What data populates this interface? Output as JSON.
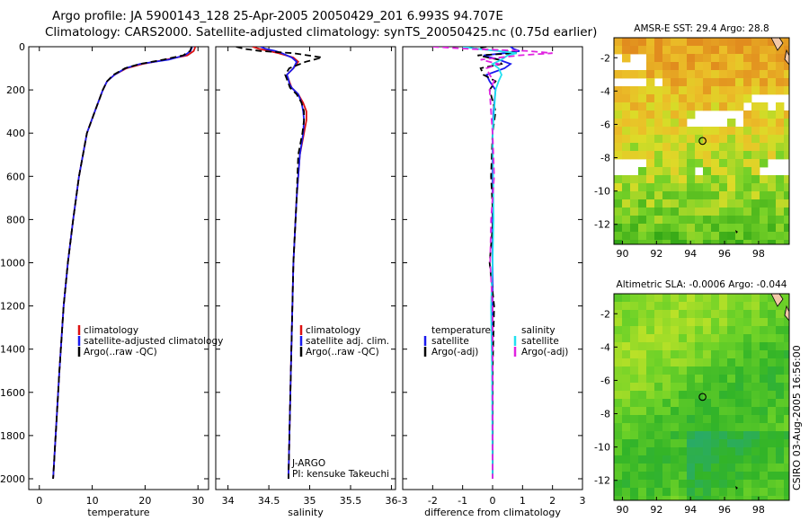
{
  "title_line1": "Argo profile: JA 5900143_128 25-Apr-2005 20050429_201 6.993S 94.707E",
  "title_line2": "Climatology: CARS2000. Satellite-adjusted climatology: synTS_20050425.nc (0.75d earlier)",
  "credit": "CSIRO 03-Aug-2005 16:56:00",
  "colors": {
    "red": "#dd1111",
    "blue": "#1a1aee",
    "black": "#000000",
    "cyan": "#22e0f0",
    "magenta": "#e022e0"
  },
  "chart_data": [
    {
      "id": "temperature",
      "type": "line",
      "xlabel": "temperature",
      "ylabel": "",
      "xlim": [
        -2,
        32
      ],
      "ylim": [
        2050,
        0
      ],
      "xticks": [
        0,
        10,
        20,
        30
      ],
      "xtick_labels": [
        "0",
        "10",
        "20",
        "30"
      ],
      "yticks": [
        0,
        200,
        400,
        600,
        800,
        1000,
        1200,
        1400,
        1600,
        1800,
        2000
      ],
      "ytick_labels": [
        "0",
        "200",
        "400",
        "600",
        "800",
        "1000",
        "1200",
        "1400",
        "1600",
        "1800",
        "2000"
      ],
      "legend": [
        "climatology",
        "satellite-adjusted climatology",
        "Argo(..raw -QC)"
      ],
      "depth": [
        0,
        20,
        40,
        60,
        80,
        100,
        130,
        160,
        200,
        300,
        400,
        600,
        800,
        1000,
        1200,
        1500,
        2000
      ],
      "series": [
        {
          "name": "climatology",
          "color": "red",
          "dashed": false,
          "values": [
            29.5,
            29.2,
            28.0,
            24.0,
            19.5,
            16.5,
            14.2,
            12.8,
            12.0,
            10.5,
            9.0,
            7.5,
            6.4,
            5.4,
            4.6,
            3.8,
            2.6
          ]
        },
        {
          "name": "satellite-adjusted climatology",
          "color": "blue",
          "dashed": false,
          "values": [
            28.9,
            28.6,
            27.5,
            24.5,
            19.0,
            16.3,
            14.2,
            12.8,
            12.0,
            10.5,
            9.0,
            7.5,
            6.4,
            5.4,
            4.6,
            3.8,
            2.6
          ]
        },
        {
          "name": "Argo(..raw -QC)",
          "color": "black",
          "dashed": true,
          "values": [
            28.8,
            28.5,
            27.2,
            23.5,
            19.0,
            16.2,
            14.0,
            12.8,
            12.0,
            10.5,
            9.0,
            7.5,
            6.4,
            5.4,
            4.6,
            3.8,
            2.6
          ]
        }
      ]
    },
    {
      "id": "salinity",
      "type": "line",
      "xlabel": "salinity",
      "xlim": [
        33.85,
        36.05
      ],
      "ylim": [
        2050,
        0
      ],
      "xticks": [
        34,
        34.5,
        35,
        35.5,
        36
      ],
      "xtick_labels": [
        "34",
        "34.5",
        "35",
        "35.5",
        "36"
      ],
      "legend": [
        "climatology",
        "satellite adj. clim.",
        "Argo(..raw -QC)"
      ],
      "annotation": [
        "J-ARGO",
        "PI: kensuke Takeuchi"
      ],
      "depth": [
        0,
        10,
        20,
        30,
        50,
        70,
        100,
        130,
        150,
        170,
        190,
        220,
        260,
        300,
        340,
        400,
        500,
        700,
        1000,
        1500,
        2000
      ],
      "series": [
        {
          "name": "climatology",
          "color": "red",
          "dashed": false,
          "values": [
            34.3,
            34.38,
            34.5,
            34.62,
            34.8,
            34.86,
            34.8,
            34.72,
            34.74,
            34.76,
            34.78,
            34.86,
            34.92,
            34.96,
            34.96,
            34.93,
            34.88,
            34.84,
            34.8,
            34.77,
            34.74
          ]
        },
        {
          "name": "satellite adj. clim.",
          "color": "blue",
          "dashed": false,
          "values": [
            34.4,
            34.46,
            34.58,
            34.66,
            34.78,
            34.84,
            34.8,
            34.72,
            34.74,
            34.75,
            34.78,
            34.86,
            34.9,
            34.92,
            34.93,
            34.92,
            34.88,
            34.84,
            34.8,
            34.77,
            34.74
          ]
        },
        {
          "name": "Argo(..raw -QC)",
          "color": "black",
          "dashed": true,
          "values": [
            34.1,
            34.2,
            34.4,
            34.8,
            35.15,
            34.95,
            34.75,
            34.7,
            34.72,
            34.74,
            34.76,
            34.84,
            34.9,
            34.93,
            34.93,
            34.91,
            34.86,
            34.84,
            34.8,
            34.77,
            34.74
          ]
        }
      ]
    },
    {
      "id": "difference",
      "type": "line",
      "xlabel": "difference from climatology",
      "xlim": [
        -3,
        3
      ],
      "ylim": [
        2050,
        0
      ],
      "xticks": [
        -3,
        -2,
        -1,
        0,
        1,
        2,
        3
      ],
      "xtick_labels": [
        "-3",
        "-2",
        "-1",
        "0",
        "1",
        "2",
        "3"
      ],
      "legend_left_header": "temperature",
      "legend_right_header": "salinity",
      "legend_left": [
        "satellite",
        "Argo(-adj)"
      ],
      "legend_right": [
        "satellite",
        "Argo(-adj)"
      ],
      "depth": [
        0,
        10,
        20,
        30,
        40,
        60,
        80,
        100,
        130,
        160,
        200,
        300,
        400,
        600,
        800,
        1000,
        1200,
        1500,
        2000
      ],
      "series": [
        {
          "name": "temperature satellite",
          "color": "blue",
          "dashed": false,
          "values": [
            0.6,
            0.7,
            0.9,
            0.4,
            -0.3,
            0.2,
            0.6,
            0.4,
            -0.2,
            -0.1,
            0.1,
            0.03,
            0.0,
            0.0,
            0.0,
            0.0,
            0.0,
            0.0,
            0.0
          ]
        },
        {
          "name": "temperature Argo(-adj)",
          "color": "black",
          "dashed": true,
          "values": [
            -0.2,
            -0.6,
            0.5,
            0.8,
            -0.5,
            0.2,
            0.3,
            -0.4,
            -0.3,
            0.1,
            -0.1,
            0.1,
            0.0,
            -0.05,
            0.02,
            -0.1,
            0.05,
            0.0,
            0.0
          ]
        },
        {
          "name": "salinity satellite",
          "color": "cyan",
          "dashed": false,
          "values": [
            -1.0,
            -0.5,
            0.2,
            0.8,
            0.5,
            0.3,
            0.0,
            0.2,
            0.3,
            0.2,
            0.1,
            0.05,
            0.0,
            0.02,
            0.03,
            0.0,
            -0.05,
            -0.02,
            0.0
          ]
        },
        {
          "name": "salinity Argo(-adj)",
          "color": "magenta",
          "dashed": true,
          "values": [
            -2.0,
            -0.8,
            1.2,
            2.0,
            0.9,
            -0.4,
            0.2,
            -0.2,
            -0.1,
            0.05,
            -0.1,
            -0.05,
            0.0,
            0.05,
            -0.05,
            -0.08,
            0.0,
            0.0,
            0.0
          ]
        }
      ]
    },
    {
      "id": "sst_map",
      "type": "heatmap",
      "title": "AMSR-E SST: 29.4 Argo: 28.8",
      "xlim": [
        89.5,
        99.8
      ],
      "ylim": [
        -13.2,
        -0.8
      ],
      "xticks": [
        90,
        92,
        94,
        96,
        98
      ],
      "xtick_labels": [
        "90",
        "92",
        "94",
        "96",
        "98"
      ],
      "yticks": [
        -2,
        -4,
        -6,
        -8,
        -10,
        -12
      ],
      "ytick_labels": [
        "-2",
        "-4",
        "-6",
        "-8",
        "-10",
        "-12"
      ],
      "argo_position": [
        94.707,
        -6.993
      ],
      "seed": 7
    },
    {
      "id": "sla_map",
      "type": "heatmap",
      "title": "Altimetric SLA: -0.0006 Argo: -0.044",
      "xlim": [
        89.5,
        99.8
      ],
      "ylim": [
        -13.2,
        -0.8
      ],
      "xticks": [
        90,
        92,
        94,
        96,
        98
      ],
      "xtick_labels": [
        "90",
        "92",
        "94",
        "96",
        "98"
      ],
      "yticks": [
        -2,
        -4,
        -6,
        -8,
        -10,
        -12
      ],
      "ytick_labels": [
        "-2",
        "-4",
        "-6",
        "-8",
        "-10",
        "-12"
      ],
      "argo_position": [
        94.707,
        -6.993
      ],
      "seed": 23
    }
  ]
}
